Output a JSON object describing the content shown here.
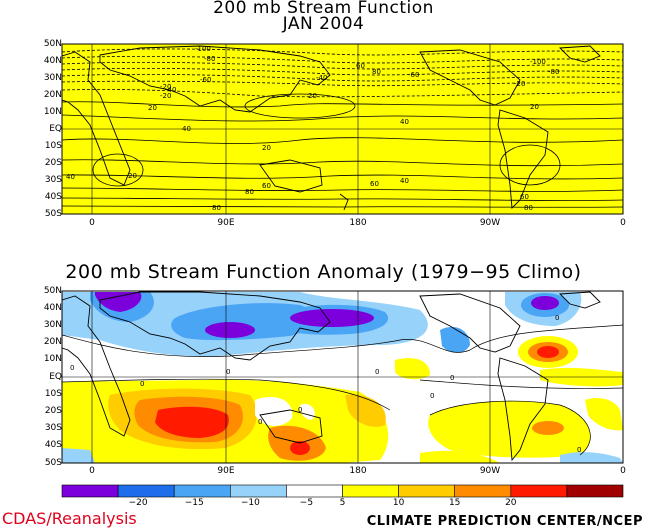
{
  "panel_top": {
    "title_line1": "200 mb Stream Function",
    "title_line2": "JAN 2004",
    "fill_color": "#ffff00",
    "lat_labels": [
      "50N",
      "40N",
      "30N",
      "20N",
      "10N",
      "EQ",
      "10S",
      "20S",
      "30S",
      "40S",
      "50S"
    ],
    "lon_labels": [
      "0",
      "90E",
      "180",
      "90W",
      "0"
    ],
    "contour_labels": [
      "-100",
      "-80",
      "-60",
      "-40",
      "-20",
      "20",
      "40",
      "60",
      "80",
      "-100",
      "-80",
      "-60",
      "-40",
      "-20",
      "-20",
      "20",
      "40",
      "60",
      "80",
      "20",
      "20",
      "40",
      "60",
      "80",
      "20",
      "40",
      "60",
      "80"
    ]
  },
  "panel_bottom": {
    "title": "200 mb Stream Function Anomaly (1979−95 Climo)",
    "lat_labels": [
      "50N",
      "40N",
      "30N",
      "20N",
      "10N",
      "EQ",
      "10S",
      "20S",
      "30S",
      "40S",
      "50S"
    ],
    "lon_labels": [
      "0",
      "90E",
      "180",
      "90W",
      "0"
    ],
    "contour_labels": [
      "0",
      "0",
      "0",
      "0",
      "0",
      "0",
      "0",
      "0",
      "0",
      "0"
    ]
  },
  "colorbar": {
    "colors": [
      "#7b00dc",
      "#1e6eeb",
      "#4ba5f5",
      "#96d2fa",
      "#ffffff",
      "#ffff00",
      "#ffcc00",
      "#ff8c00",
      "#ff1a00",
      "#a00000"
    ],
    "labels": [
      "−20",
      "−15",
      "−10",
      "−5",
      "5",
      "10",
      "15",
      "20"
    ]
  },
  "credits": {
    "left": "CDAS/Reanalysis",
    "right": "CLIMATE PREDICTION CENTER/NCEP"
  },
  "colors": {
    "land": "#000000",
    "anomaly_positive": [
      "#ffff00",
      "#ffcc00",
      "#ff8c00",
      "#ff1a00",
      "#a00000"
    ],
    "anomaly_negative": [
      "#96d2fa",
      "#4ba5f5",
      "#1e6eeb",
      "#7b00dc"
    ]
  }
}
